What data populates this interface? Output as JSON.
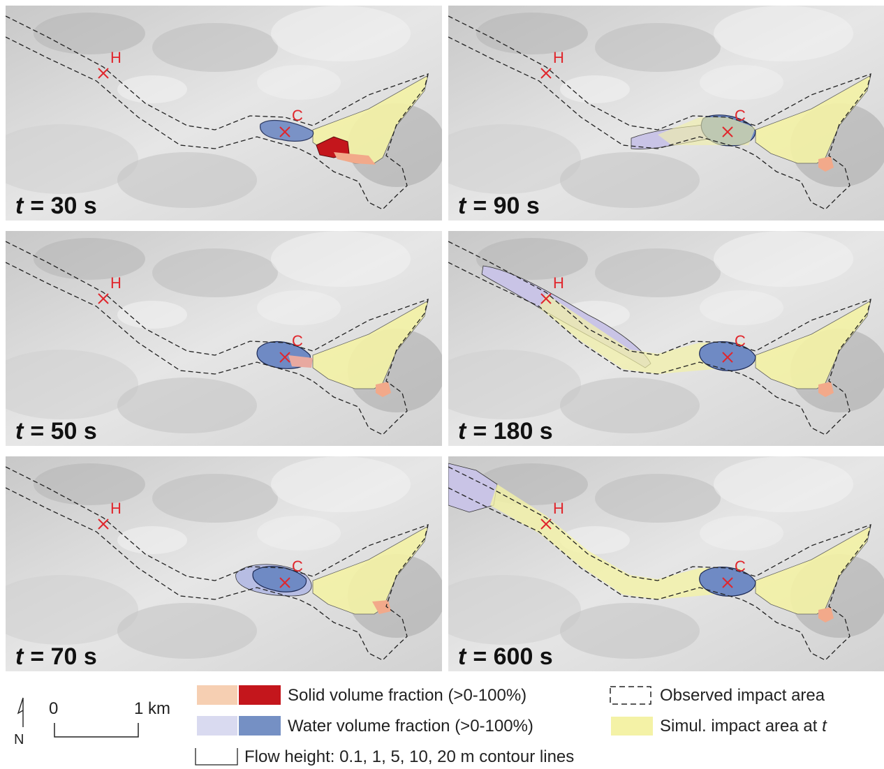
{
  "panels": [
    {
      "variable": "t",
      "time": "= 30 s",
      "markers": [
        "H",
        "C"
      ]
    },
    {
      "variable": "t",
      "time": "= 90 s",
      "markers": [
        "H",
        "C"
      ]
    },
    {
      "variable": "t",
      "time": "= 50 s",
      "markers": [
        "H",
        "C"
      ]
    },
    {
      "variable": "t",
      "time": "= 180 s",
      "markers": [
        "H",
        "C"
      ]
    },
    {
      "variable": "t",
      "time": "= 70 s",
      "markers": [
        "H",
        "C"
      ]
    },
    {
      "variable": "t",
      "time": "= 600 s",
      "markers": [
        "H",
        "C"
      ]
    }
  ],
  "legend": {
    "solid": "Solid volume fraction (>0-100%)",
    "water": "Water volume fraction (>0-100%)",
    "observed": "Observed impact area",
    "simulated": "Simul. impact area at",
    "simulated_variable": "t",
    "contours": "Flow height: 0.1, 1, 5, 10, 20 m contour lines"
  },
  "scale_bar": {
    "start": "0",
    "end": "1 km"
  },
  "north": "N"
}
